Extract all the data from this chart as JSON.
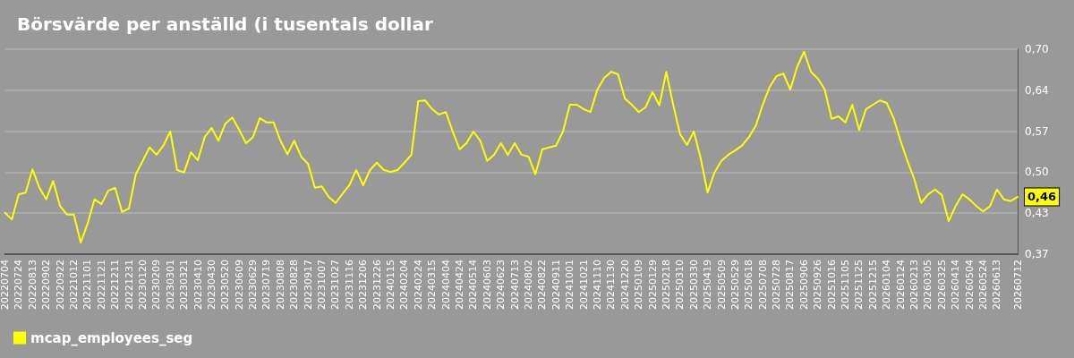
{
  "chart_data": {
    "type": "line",
    "title": "Börsvärde per anställd (i tusentals dollar",
    "categories": [
      "20220704",
      null,
      "20220724",
      null,
      "20220813",
      null,
      "20220902",
      null,
      "20220922",
      null,
      "20221012",
      null,
      "20221101",
      null,
      "20221121",
      null,
      "20221211",
      null,
      "20221231",
      null,
      "20230120",
      null,
      "20230209",
      null,
      "20230301",
      null,
      "20230321",
      null,
      "20230410",
      null,
      "20230430",
      null,
      "20230520",
      null,
      "20230609",
      null,
      "20230629",
      null,
      "20230719",
      null,
      "20230808",
      null,
      "20230828",
      null,
      "20230917",
      null,
      "20231007",
      null,
      "20231027",
      null,
      "20231116",
      null,
      "20231206",
      null,
      "20231226",
      null,
      "20240115",
      null,
      "20240204",
      null,
      "20240224",
      null,
      "20240315",
      null,
      "20240404",
      null,
      "20240424",
      null,
      "20240514",
      null,
      "20240603",
      null,
      "20240623",
      null,
      "20240713",
      null,
      "20240802",
      null,
      "20240822",
      null,
      "20240911",
      null,
      "20241001",
      null,
      "20241021",
      null,
      "20241110",
      null,
      "20241130",
      null,
      "20241220",
      null,
      "20250109",
      null,
      "20250129",
      null,
      "20250218",
      null,
      "20250310",
      null,
      "20250330",
      null,
      "20250419",
      null,
      "20250509",
      null,
      "20250529",
      null,
      "20250618",
      null,
      "20250708",
      null,
      "20250728",
      null,
      "20250817",
      null,
      "20250906",
      null,
      "20250926",
      null,
      "20251016",
      null,
      "20251105",
      null,
      "20251125",
      null,
      "20251215",
      null,
      "20260104",
      null,
      "20260124",
      null,
      "20260213",
      null,
      "20260305",
      null,
      "20260325",
      null,
      "20260414",
      null,
      "20260504",
      null,
      "20260524",
      null,
      "20260613",
      null,
      null,
      "20260712"
    ],
    "series": [
      {
        "name": "mcap_employees_seg",
        "color": "#ffff00",
        "values": [
          0.434,
          0.423,
          0.464,
          0.467,
          0.505,
          0.475,
          0.456,
          0.486,
          0.445,
          0.431,
          0.431,
          0.385,
          0.416,
          0.456,
          0.448,
          0.47,
          0.475,
          0.435,
          0.441,
          0.497,
          0.519,
          0.541,
          0.529,
          0.544,
          0.567,
          0.504,
          0.5,
          0.533,
          0.52,
          0.558,
          0.573,
          0.552,
          0.58,
          0.59,
          0.57,
          0.548,
          0.558,
          0.589,
          0.582,
          0.582,
          0.552,
          0.53,
          0.552,
          0.526,
          0.514,
          0.475,
          0.477,
          0.46,
          0.45,
          0.465,
          0.479,
          0.504,
          0.479,
          0.504,
          0.516,
          0.504,
          0.501,
          0.504,
          0.516,
          0.529,
          0.617,
          0.618,
          0.604,
          0.595,
          0.599,
          0.567,
          0.538,
          0.548,
          0.567,
          0.552,
          0.519,
          0.529,
          0.548,
          0.529,
          0.548,
          0.529,
          0.526,
          0.497,
          0.538,
          0.541,
          0.544,
          0.567,
          0.611,
          0.611,
          0.604,
          0.599,
          0.636,
          0.655,
          0.665,
          0.661,
          0.621,
          0.611,
          0.599,
          0.607,
          0.632,
          0.61,
          0.665,
          0.611,
          0.563,
          0.545,
          0.567,
          0.523,
          0.467,
          0.5,
          0.519,
          0.529,
          0.536,
          0.544,
          0.558,
          0.577,
          0.611,
          0.64,
          0.658,
          0.662,
          0.636,
          0.673,
          0.698,
          0.665,
          0.654,
          0.636,
          0.588,
          0.592,
          0.582,
          0.611,
          0.57,
          0.604,
          0.611,
          0.618,
          0.614,
          0.589,
          0.552,
          0.519,
          0.489,
          0.45,
          0.464,
          0.472,
          0.463,
          0.42,
          0.445,
          0.464,
          0.456,
          0.445,
          0.436,
          0.445,
          0.472,
          0.456,
          0.453,
          0.46
        ]
      }
    ],
    "ylim": [
      0.366,
      0.702
    ],
    "yticks": [
      {
        "value": 0.366,
        "label": "0,37"
      },
      {
        "value": 0.4332,
        "label": "0,43"
      },
      {
        "value": 0.5004,
        "label": "0,50"
      },
      {
        "value": 0.5676,
        "label": "0,57"
      },
      {
        "value": 0.635,
        "label": "0,64"
      },
      {
        "value": 0.702,
        "label": "0,70"
      }
    ],
    "annotations": [
      {
        "text": "0,46",
        "x": "20260712",
        "y": 0.46
      }
    ],
    "grid": "y",
    "legend": "bottom left",
    "marker": "none",
    "line_style": "solid"
  }
}
